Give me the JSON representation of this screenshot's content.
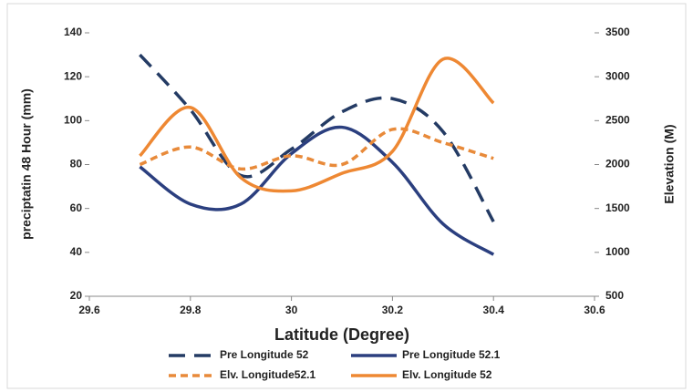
{
  "chart_data": {
    "type": "line",
    "x_label": "Latitude (Degree)",
    "y_label": "preciptatin 48 Hour (mm)",
    "y2_label": "Elevation (M)",
    "x": [
      29.7,
      29.8,
      29.9,
      30.0,
      30.1,
      30.2,
      30.3,
      30.4
    ],
    "xlim": [
      29.6,
      30.6
    ],
    "xticks": [
      29.6,
      29.8,
      30,
      30.2,
      30.4,
      30.6
    ],
    "ylim": [
      20,
      140
    ],
    "yticks": [
      20,
      40,
      60,
      80,
      100,
      120,
      140
    ],
    "y2lim": [
      500,
      3500
    ],
    "y2ticks": [
      500,
      1000,
      1500,
      2000,
      2500,
      3000,
      3500
    ],
    "series": [
      {
        "name": "Pre Longitude 52",
        "color": "#243b64",
        "dash": true,
        "values": [
          130,
          105,
          75,
          87,
          104,
          110,
          95,
          54
        ]
      },
      {
        "name": "Pre Longitude 52.1",
        "color": "#2b3f7f",
        "dash": false,
        "values": [
          79,
          62,
          62,
          85,
          97,
          81,
          53,
          39
        ]
      },
      {
        "name": "Elv. Longitude52.1",
        "color": "#e88a3a",
        "dash": true,
        "axis": "y2",
        "values": [
          2000,
          2200,
          1950,
          2100,
          2000,
          2400,
          2250,
          2070
        ]
      },
      {
        "name": "Elv. Longitude 52",
        "color": "#ee8833",
        "dash": false,
        "axis": "y2",
        "values": [
          2100,
          2650,
          1850,
          1700,
          1900,
          2150,
          3200,
          2700
        ]
      }
    ]
  }
}
